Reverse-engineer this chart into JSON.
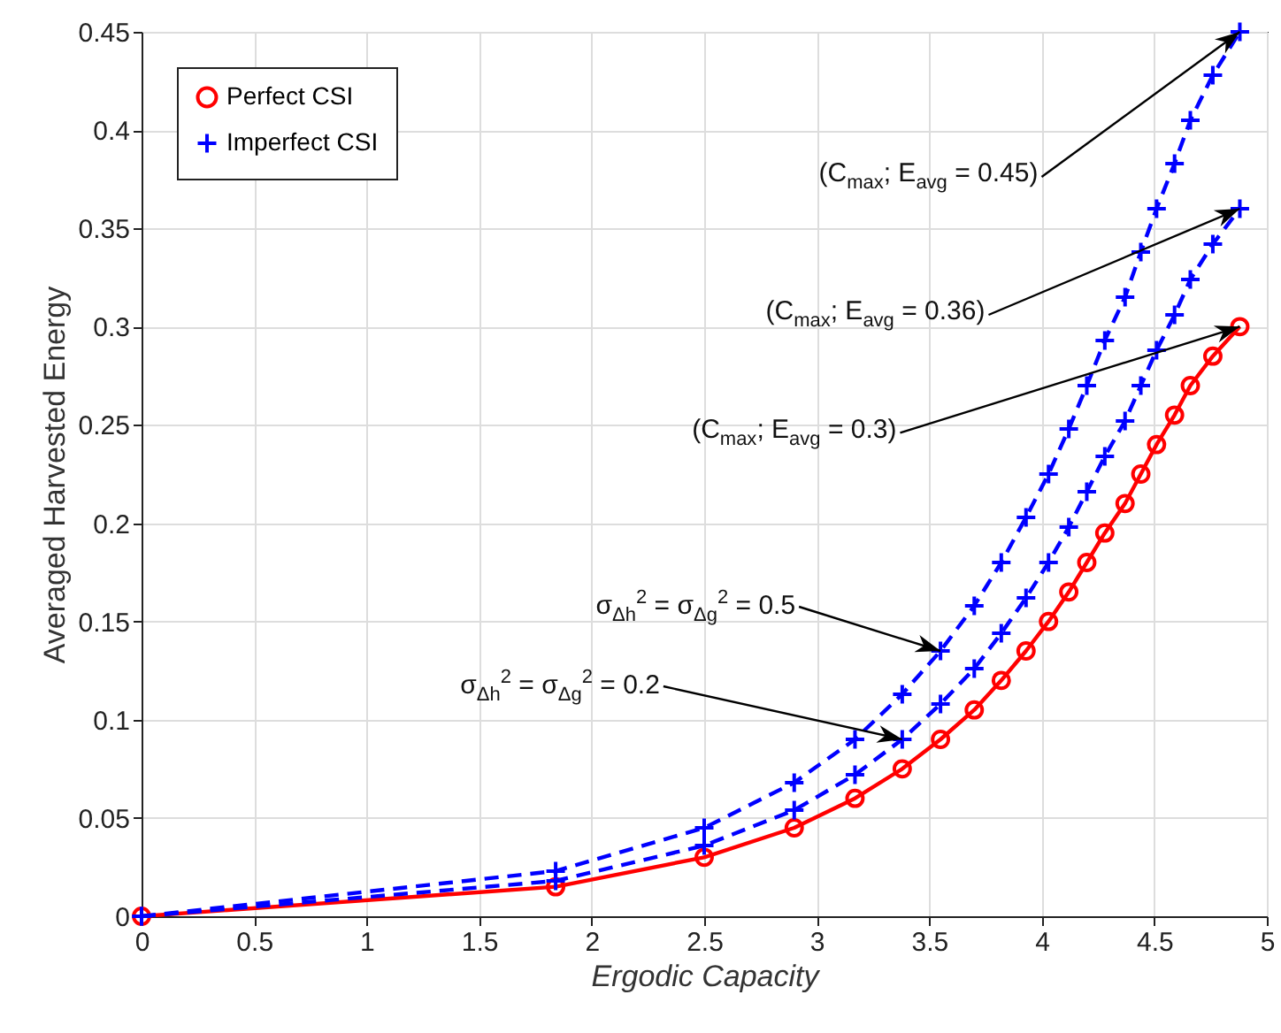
{
  "chart_data": {
    "type": "line",
    "xlabel": "Ergodic Capacity",
    "ylabel": "Averaged Harvested Energy",
    "xlim": [
      0,
      5
    ],
    "ylim": [
      0,
      0.45
    ],
    "xticks": [
      0,
      0.5,
      1,
      1.5,
      2,
      2.5,
      3,
      3.5,
      4,
      4.5,
      5
    ],
    "yticks": [
      0,
      0.05,
      0.1,
      0.15,
      0.2,
      0.25,
      0.3,
      0.35,
      0.4,
      0.45
    ],
    "grid": true,
    "legend": "top left",
    "x": [
      0,
      1.84,
      2.5,
      2.9,
      3.17,
      3.38,
      3.55,
      3.7,
      3.82,
      3.93,
      4.03,
      4.12,
      4.2,
      4.28,
      4.37,
      4.44,
      4.51,
      4.59,
      4.66,
      4.76,
      4.88
    ],
    "series": [
      {
        "name": "Perfect CSI",
        "color": "#ff0000",
        "marker": "circle",
        "line_style": "solid",
        "values": [
          0,
          0.015,
          0.03,
          0.045,
          0.06,
          0.075,
          0.09,
          0.105,
          0.12,
          0.135,
          0.15,
          0.165,
          0.18,
          0.195,
          0.21,
          0.225,
          0.24,
          0.255,
          0.27,
          0.285,
          0.3
        ]
      },
      {
        "name": "Imperfect CSI",
        "color": "#0000ff",
        "marker": "cross",
        "line_style": "dashed",
        "values": [
          0,
          0.018,
          0.036,
          0.054,
          0.072,
          0.09,
          0.108,
          0.126,
          0.144,
          0.162,
          0.18,
          0.198,
          0.216,
          0.234,
          0.252,
          0.27,
          0.288,
          0.306,
          0.324,
          0.342,
          0.36
        ]
      },
      {
        "color": "#0000ff",
        "marker": "cross",
        "line_style": "dashed",
        "values": [
          0,
          0.023,
          0.045,
          0.068,
          0.09,
          0.113,
          0.135,
          0.158,
          0.18,
          0.203,
          0.225,
          0.248,
          0.27,
          0.293,
          0.315,
          0.338,
          0.36,
          0.383,
          0.405,
          0.428,
          0.45
        ]
      }
    ],
    "annotations": [
      {
        "text": "(C$_{max}$; E$_{avg}$ = 0.45)",
        "x": 4.88,
        "y": 0.45
      },
      {
        "text": "(C$_{max}$; E$_{avg}$ = 0.36)",
        "x": 4.88,
        "y": 0.36
      },
      {
        "text": "(C$_{max}$; E$_{avg}$ = 0.3)",
        "x": 4.88,
        "y": 0.3
      },
      {
        "text": "σ$_{Δh}$$^{2}$ = σ$_{Δg}$$^{2}$ = 0.5",
        "x": 3.55,
        "y": 0.135
      },
      {
        "text": "σ$_{Δh}$$^{2}$ = σ$_{Δg}$$^{2}$ = 0.2",
        "x": 3.38,
        "y": 0.09
      }
    ]
  }
}
